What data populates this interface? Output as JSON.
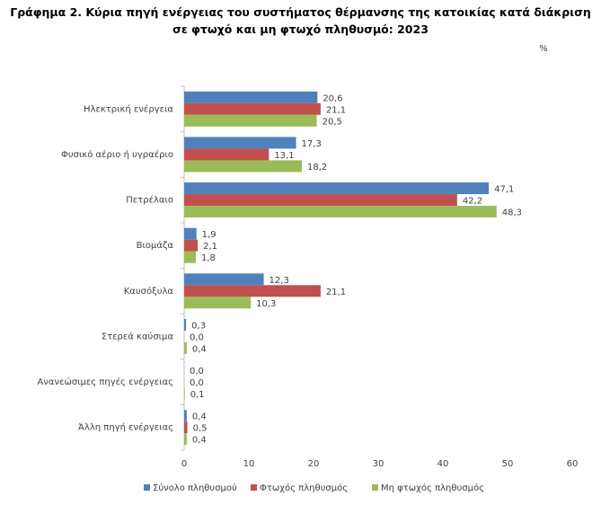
{
  "chart_data": {
    "type": "hbar",
    "title": "Γράφημα 2. Κύρια πηγή ενέργειας του συστήματος θέρμανσης της κατοικίας κατά διάκριση σε φτωχό και μη φτωχό πληθυσμό: 2023",
    "unit": "%",
    "categories": [
      "Ηλεκτρική ενέργεια",
      "Φυσικό αέριο ή υγραέριο",
      "Πετρέλαιο",
      "Βιομάζα",
      "Καυσόξυλα",
      "Στερεά καύσιμα",
      "Ανανεώσιμες πηγές ενέργειας",
      "Άλλη πηγή ενέργειας"
    ],
    "series": [
      {
        "name": "Σύνολο πληθυσμού",
        "color": "#4f81bd",
        "values": [
          20.6,
          17.3,
          47.1,
          1.9,
          12.3,
          0.3,
          0.0,
          0.4
        ],
        "value_labels": [
          "20,6",
          "17,3",
          "47,1",
          "1,9",
          "12,3",
          "0,3",
          "0,0",
          "0,4"
        ]
      },
      {
        "name": "Φτωχός πληθυσμός",
        "color": "#c0504d",
        "values": [
          21.1,
          13.1,
          42.2,
          2.1,
          21.1,
          0.0,
          0.0,
          0.5
        ],
        "value_labels": [
          "21,1",
          "13,1",
          "42,2",
          "2,1",
          "21,1",
          "0,0",
          "0,0",
          "0,5"
        ]
      },
      {
        "name": "Μη φτωχός πληθυσμός",
        "color": "#9bbb59",
        "values": [
          20.5,
          18.2,
          48.3,
          1.8,
          10.3,
          0.4,
          0.1,
          0.4
        ],
        "value_labels": [
          "20,5",
          "18,2",
          "48,3",
          "1,8",
          "10,3",
          "0,4",
          "0,1",
          "0,4"
        ]
      }
    ],
    "xlim": [
      0,
      60
    ],
    "xticks": [
      0,
      10,
      20,
      30,
      40,
      50,
      60
    ],
    "grid": false
  }
}
